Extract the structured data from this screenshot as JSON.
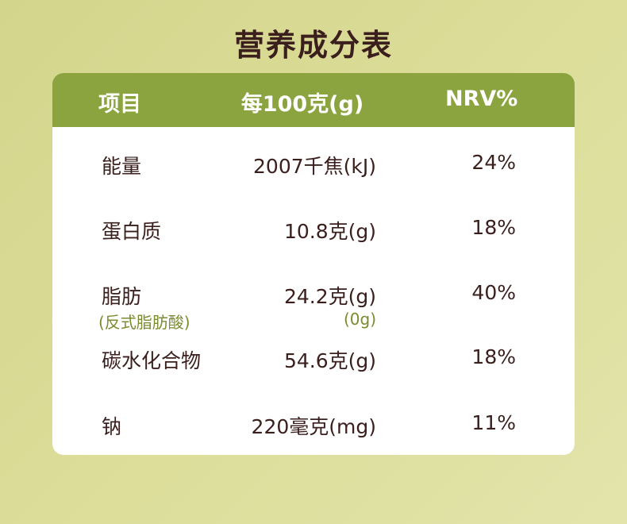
{
  "title": "营养成分表",
  "header": {
    "item": "项目",
    "amount": "每100克(g)",
    "nrv": "NRV%"
  },
  "rows": [
    {
      "name": "能量",
      "amount": "2007千焦(kJ)",
      "nrv": "24%"
    },
    {
      "name": "蛋白质",
      "amount": "10.8克(g)",
      "nrv": "18%"
    },
    {
      "name": "脂肪",
      "amount": "24.2克(g)",
      "nrv": "40%",
      "sub_name": "(反式脂肪酸)",
      "sub_amount": "(0g)"
    },
    {
      "name": "碳水化合物",
      "amount": "54.6克(g)",
      "nrv": "18%"
    },
    {
      "name": "钠",
      "amount": "220毫克(mg)",
      "nrv": "11%"
    }
  ]
}
